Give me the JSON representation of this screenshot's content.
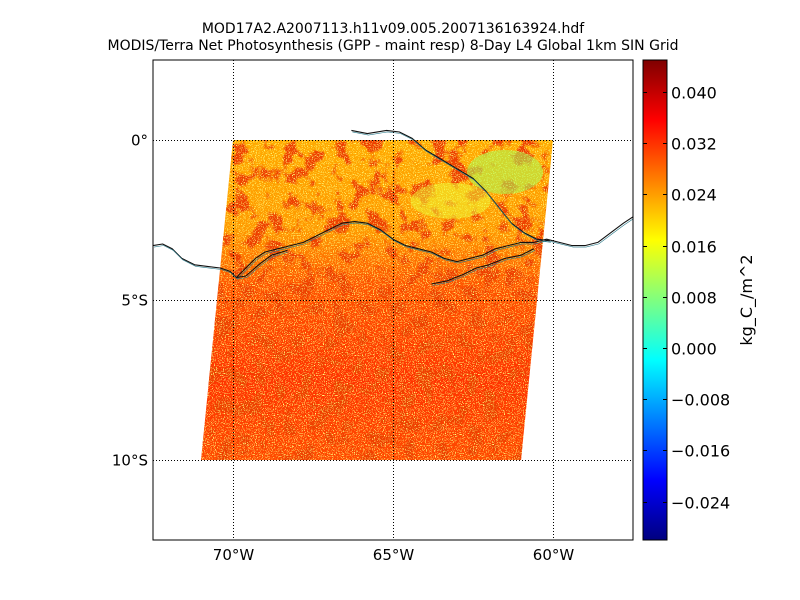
{
  "title_line1": "MOD17A2.A2007113.h11v09.005.2007136163924.hdf",
  "title_line2": "MODIS/Terra Net Photosynthesis (GPP - maint resp) 8-Day L4 Global 1km SIN Grid",
  "map": {
    "lon_range": [
      -72.5,
      -57.5
    ],
    "lat_range": [
      -12.5,
      2.5
    ],
    "lon_ticks": [
      {
        "value": -70,
        "label": "70°W"
      },
      {
        "value": -65,
        "label": "65°W"
      },
      {
        "value": -60,
        "label": "60°W"
      }
    ],
    "lat_ticks": [
      {
        "value": 0,
        "label": "0°"
      },
      {
        "value": -5,
        "label": "5°S"
      },
      {
        "value": -10,
        "label": "10°S"
      }
    ],
    "grid": "dotted",
    "tile_corners_deg": [
      [
        -70.0,
        0.0
      ],
      [
        -60.0,
        0.0
      ],
      [
        -61.0,
        -10.0
      ],
      [
        -71.0,
        -10.0
      ]
    ],
    "dominant_colors": [
      "#ff3300",
      "#ff6600",
      "#ff9900",
      "#ffcc00",
      "#ffff33",
      "#99ff66"
    ]
  },
  "colorbar": {
    "label": "kg_C_/m^2",
    "range": [
      -0.03,
      0.045
    ],
    "ticks": [
      {
        "value": 0.04,
        "label": "0.040"
      },
      {
        "value": 0.032,
        "label": "0.032"
      },
      {
        "value": 0.024,
        "label": "0.024"
      },
      {
        "value": 0.016,
        "label": "0.016"
      },
      {
        "value": 0.008,
        "label": "0.008"
      },
      {
        "value": 0.0,
        "label": "0.000"
      },
      {
        "value": -0.008,
        "label": "−0.008"
      },
      {
        "value": -0.016,
        "label": "−0.016"
      },
      {
        "value": -0.024,
        "label": "−0.024"
      }
    ],
    "colormap": "jet"
  }
}
